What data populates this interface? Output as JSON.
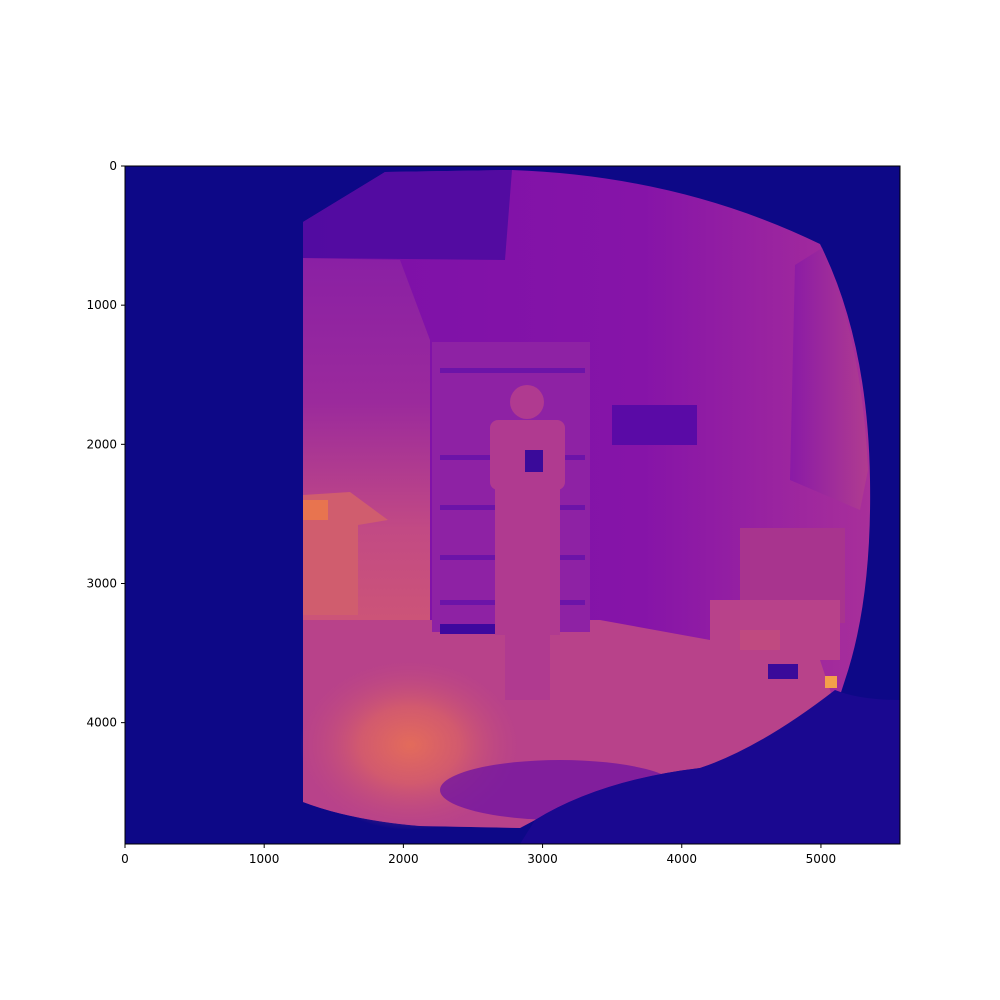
{
  "chart_data": {
    "type": "heatmap",
    "title": "",
    "xlabel": "",
    "ylabel": "",
    "colormap": "plasma",
    "image_width": 5568,
    "image_height": 4872,
    "xlim": [
      0,
      5568
    ],
    "ylim": [
      4872,
      0
    ],
    "x_ticks": [
      0,
      1000,
      2000,
      3000,
      4000,
      5000
    ],
    "y_ticks": [
      0,
      1000,
      2000,
      3000,
      4000
    ],
    "x_tick_labels": [
      "0",
      "1000",
      "2000",
      "3000",
      "4000",
      "5000"
    ],
    "y_tick_labels": [
      "0",
      "1000",
      "2000",
      "3000",
      "4000"
    ],
    "y_axis_inverted": true,
    "grid": false,
    "legend": "none",
    "colors": {
      "background_low": "#0d0887",
      "mid_violet": "#7a10a6",
      "mid_magenta": "#b23a94",
      "high_salmon": "#e0665e",
      "high_orange": "#f4a04a"
    }
  }
}
